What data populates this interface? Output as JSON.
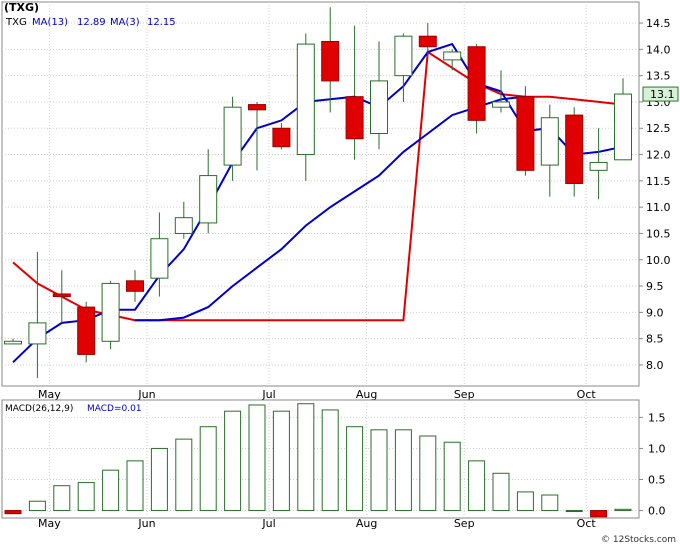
{
  "chart_data": [
    {
      "type": "candlestick",
      "title": "(TXG)",
      "legend": [
        {
          "label": "TXG",
          "color": "#000000"
        },
        {
          "label": "MA(13)",
          "value": "12.89",
          "color": "#0000cc"
        },
        {
          "label": "MA(3)",
          "value": "12.15",
          "color": "#0000cc"
        }
      ],
      "last_price_label": "13.1",
      "ylim": [
        7.6,
        14.9
      ],
      "y_ticks": [
        "8.0",
        "8.5",
        "9.0",
        "9.5",
        "10.0",
        "10.5",
        "11.0",
        "11.5",
        "12.0",
        "12.5",
        "13.0",
        "13.5",
        "14.0",
        "14.5"
      ],
      "x_ticks": [
        {
          "label": "May",
          "index": 1
        },
        {
          "label": "Jun",
          "index": 5
        },
        {
          "label": "Jul",
          "index": 10
        },
        {
          "label": "Aug",
          "index": 14
        },
        {
          "label": "Sep",
          "index": 18
        },
        {
          "label": "Oct",
          "index": 23
        }
      ],
      "candles": [
        {
          "open": 8.4,
          "high": 8.5,
          "low": 8.4,
          "close": 8.45
        },
        {
          "open": 8.4,
          "high": 10.15,
          "low": 7.75,
          "close": 8.8
        },
        {
          "open": 9.35,
          "high": 9.8,
          "low": 8.8,
          "close": 9.3
        },
        {
          "open": 9.1,
          "high": 9.2,
          "low": 8.05,
          "close": 8.2
        },
        {
          "open": 8.45,
          "high": 9.6,
          "low": 8.3,
          "close": 9.55
        },
        {
          "open": 9.6,
          "high": 9.8,
          "low": 9.2,
          "close": 9.4
        },
        {
          "open": 9.65,
          "high": 10.9,
          "low": 9.3,
          "close": 10.4
        },
        {
          "open": 10.5,
          "high": 11.1,
          "low": 10.4,
          "close": 10.8
        },
        {
          "open": 10.7,
          "high": 12.1,
          "low": 10.5,
          "close": 11.6
        },
        {
          "open": 11.8,
          "high": 13.1,
          "low": 11.5,
          "close": 12.9
        },
        {
          "open": 12.95,
          "high": 13.0,
          "low": 11.7,
          "close": 12.85
        },
        {
          "open": 12.5,
          "high": 12.6,
          "low": 12.1,
          "close": 12.15
        },
        {
          "open": 12.0,
          "high": 14.3,
          "low": 11.5,
          "close": 14.1
        },
        {
          "open": 14.15,
          "high": 14.8,
          "low": 12.8,
          "close": 13.4
        },
        {
          "open": 13.1,
          "high": 14.45,
          "low": 11.9,
          "close": 12.3
        },
        {
          "open": 12.4,
          "high": 14.15,
          "low": 12.1,
          "close": 13.4
        },
        {
          "open": 13.5,
          "high": 14.3,
          "low": 13.0,
          "close": 14.25
        },
        {
          "open": 14.25,
          "high": 14.5,
          "low": 13.9,
          "close": 14.05
        },
        {
          "open": 13.8,
          "high": 14.0,
          "low": 13.6,
          "close": 13.95
        },
        {
          "open": 14.05,
          "high": 14.1,
          "low": 12.4,
          "close": 12.65
        },
        {
          "open": 12.9,
          "high": 13.6,
          "low": 12.8,
          "close": 13.0
        },
        {
          "open": 13.1,
          "high": 13.3,
          "low": 11.6,
          "close": 11.7
        },
        {
          "open": 11.8,
          "high": 12.95,
          "low": 11.2,
          "close": 12.7
        },
        {
          "open": 12.75,
          "high": 12.9,
          "low": 11.2,
          "close": 11.45
        },
        {
          "open": 11.7,
          "high": 12.5,
          "low": 11.15,
          "close": 11.85
        },
        {
          "open": 11.9,
          "high": 13.45,
          "low": 11.9,
          "close": 13.15
        }
      ],
      "series": [
        {
          "name": "MA(13)",
          "color": "#e00000",
          "start_index": 0,
          "values": [
            9.95,
            9.55,
            9.3,
            9.05,
            8.95,
            8.85,
            8.85,
            8.85,
            8.85,
            8.85,
            8.85,
            8.85,
            8.85,
            8.85,
            8.85,
            8.85,
            8.85,
            13.95,
            13.65,
            13.35,
            13.15,
            13.1,
            13.1,
            13.05,
            13.0,
            12.95
          ]
        },
        {
          "name": "MA(3)",
          "color": "#0000cc",
          "start_index": 0,
          "values": [
            8.05,
            8.5,
            8.8,
            8.85,
            9.05,
            9.05,
            9.7,
            10.2,
            11.0,
            11.85,
            12.5,
            12.65,
            13.0,
            13.05,
            13.1,
            12.9,
            13.3,
            13.95,
            14.1,
            13.35,
            13.2,
            12.45,
            12.5,
            12.0,
            12.05,
            12.15
          ]
        },
        {
          "name": "MA(13) slow",
          "color": "#0000cc",
          "start_index": 5,
          "values": [
            8.85,
            8.85,
            8.9,
            9.1,
            9.5,
            9.85,
            10.2,
            10.65,
            11.0,
            11.3,
            11.6,
            12.05,
            12.4,
            12.75,
            12.9,
            13.05,
            13.1
          ]
        }
      ]
    },
    {
      "type": "bar",
      "title": "MACD(26,12,9)",
      "legend": [
        {
          "label": "MACD(26,12,9)",
          "color": "#000000"
        },
        {
          "label": "MACD=0.01",
          "color": "#0000cc"
        }
      ],
      "ylim": [
        -0.12,
        1.78
      ],
      "y_ticks": [
        "0.0",
        "0.5",
        "1.0",
        "1.5"
      ],
      "values": [
        -0.05,
        0.15,
        0.4,
        0.45,
        0.65,
        0.8,
        1.0,
        1.15,
        1.35,
        1.6,
        1.7,
        1.6,
        1.72,
        1.62,
        1.35,
        1.3,
        1.3,
        1.2,
        1.1,
        0.8,
        0.6,
        0.3,
        0.25,
        0.0,
        -0.1,
        0.02
      ]
    }
  ],
  "watermark": "© 12Stocks.com"
}
